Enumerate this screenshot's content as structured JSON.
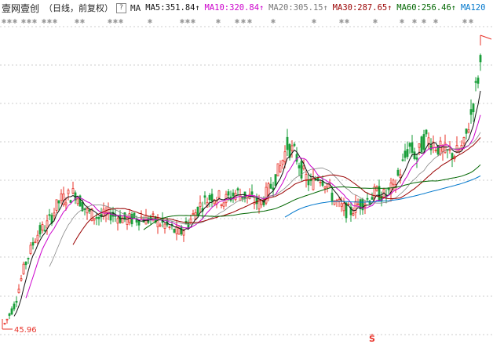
{
  "header": {
    "stock_name": "壹网壹创",
    "period": "（日线，前复权）",
    "help_icon": "?",
    "ma_title": "MA",
    "ma": [
      {
        "label": "MA5:351.84",
        "arrow": "↑",
        "color": "#111111"
      },
      {
        "label": "MA10:320.84",
        "arrow": "↑",
        "color": "#cc00cc"
      },
      {
        "label": "MA20:305.15",
        "arrow": "↑",
        "color": "#777777"
      },
      {
        "label": "MA30:287.65",
        "arrow": "↑",
        "color": "#990000"
      },
      {
        "label": "MA60:256.46",
        "arrow": "↑",
        "color": "#006600"
      },
      {
        "label": "MA120",
        "arrow": "",
        "color": "#0077cc"
      }
    ]
  },
  "chart_data": {
    "type": "candlestick",
    "title": "壹网壹创",
    "low_label": "45.96",
    "colors": {
      "up": "#e8332a",
      "down": "#1a9e3a",
      "ma5": "#111111",
      "ma10": "#cc00cc",
      "ma20": "#888888",
      "ma30": "#990000",
      "ma60": "#006600",
      "ma120": "#0077cc",
      "grid": "#cccccc"
    },
    "grid": true
  }
}
